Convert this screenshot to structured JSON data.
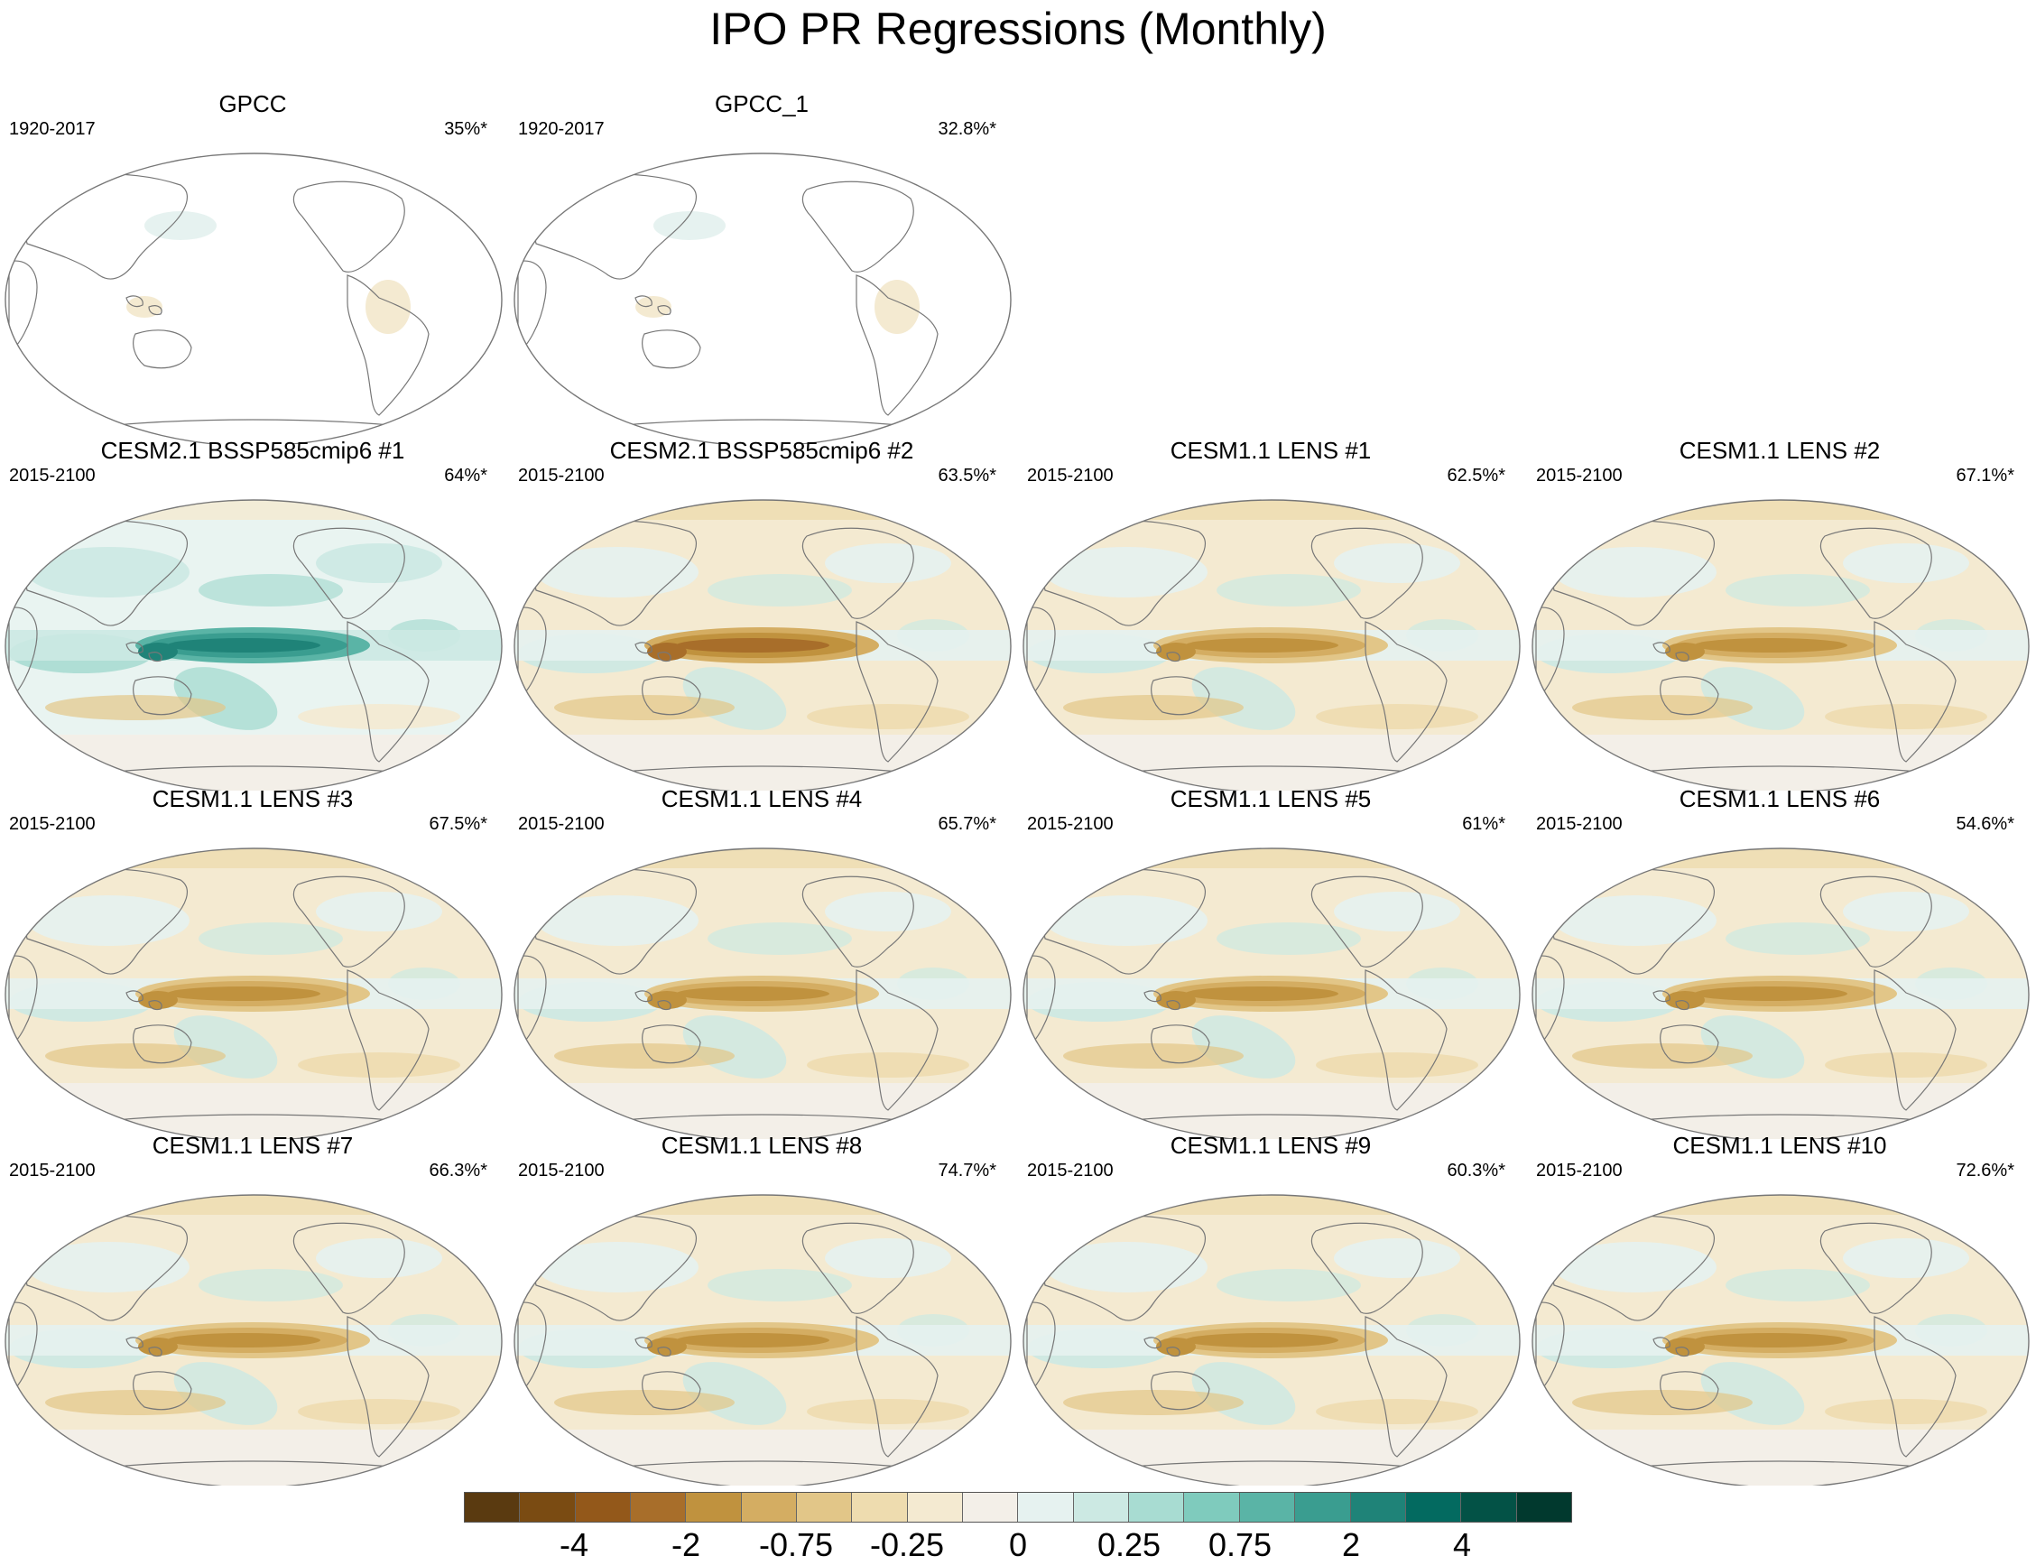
{
  "title": "IPO PR Regressions (Monthly)",
  "panels": [
    {
      "title": "GPCC",
      "period": "1920-2017",
      "pct": "35%*",
      "style": "obs"
    },
    {
      "title": "GPCC_1",
      "period": "1920-2017",
      "pct": "32.8%*",
      "style": "obs"
    },
    {
      "title": "CESM2.1 BSSP585cmip6 #1",
      "period": "2015-2100",
      "pct": "64%*",
      "style": "wet"
    },
    {
      "title": "CESM2.1 BSSP585cmip6 #2",
      "period": "2015-2100",
      "pct": "63.5%*",
      "style": "dry"
    },
    {
      "title": "CESM1.1 LENS #1",
      "period": "2015-2100",
      "pct": "62.5%*",
      "style": "lens"
    },
    {
      "title": "CESM1.1 LENS #2",
      "period": "2015-2100",
      "pct": "67.1%*",
      "style": "lens"
    },
    {
      "title": "CESM1.1 LENS #3",
      "period": "2015-2100",
      "pct": "67.5%*",
      "style": "lens"
    },
    {
      "title": "CESM1.1 LENS #4",
      "period": "2015-2100",
      "pct": "65.7%*",
      "style": "lens"
    },
    {
      "title": "CESM1.1 LENS #5",
      "period": "2015-2100",
      "pct": "61%*",
      "style": "lens"
    },
    {
      "title": "CESM1.1 LENS #6",
      "period": "2015-2100",
      "pct": "54.6%*",
      "style": "lens"
    },
    {
      "title": "CESM1.1 LENS #7",
      "period": "2015-2100",
      "pct": "66.3%*",
      "style": "lens"
    },
    {
      "title": "CESM1.1 LENS #8",
      "period": "2015-2100",
      "pct": "74.7%*",
      "style": "lens"
    },
    {
      "title": "CESM1.1 LENS #9",
      "period": "2015-2100",
      "pct": "60.3%*",
      "style": "lens"
    },
    {
      "title": "CESM1.1 LENS #10",
      "period": "2015-2100",
      "pct": "72.6%*",
      "style": "lens"
    }
  ],
  "colorbar": {
    "colors": [
      "#5a3a10",
      "#7a4b12",
      "#93581a",
      "#a86e2a",
      "#c0923e",
      "#d4ad62",
      "#e2c688",
      "#eedcaf",
      "#f4ead1",
      "#f3efe8",
      "#e6f2f0",
      "#cce9e3",
      "#a8dcd2",
      "#7fcbbd",
      "#5ab4a6",
      "#3a9d90",
      "#1f8378",
      "#036a60",
      "#035246",
      "#01392e"
    ],
    "tick_labels": [
      "-4",
      "-2",
      "-0.75",
      "-0.25",
      "0",
      "0.25",
      "0.75",
      "2",
      "4"
    ]
  }
}
